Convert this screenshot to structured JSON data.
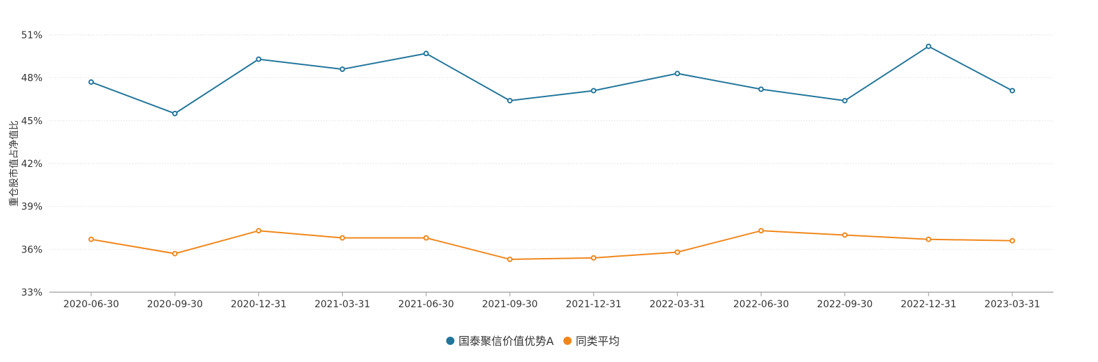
{
  "chart_data": {
    "type": "line",
    "ylabel": "重仓股市值占净值比",
    "ylim": [
      33,
      51
    ],
    "yticks": [
      33,
      36,
      39,
      42,
      45,
      48,
      51
    ],
    "ytick_labels": [
      "33%",
      "36%",
      "39%",
      "42%",
      "45%",
      "48%",
      "51%"
    ],
    "categories": [
      "2020-06-30",
      "2020-09-30",
      "2020-12-31",
      "2021-03-31",
      "2021-06-30",
      "2021-09-30",
      "2021-12-31",
      "2022-03-31",
      "2022-06-30",
      "2022-09-30",
      "2022-12-31",
      "2023-03-31"
    ],
    "grid": true,
    "legend_position": "bottom-center",
    "series": [
      {
        "name": "国泰聚信价值优势A",
        "color": "#21759b",
        "values": [
          47.7,
          45.5,
          49.3,
          48.6,
          49.7,
          46.4,
          47.1,
          48.3,
          47.2,
          46.4,
          50.2,
          47.1
        ]
      },
      {
        "name": "同类平均",
        "color": "#f0861a",
        "values": [
          36.7,
          35.7,
          37.3,
          36.8,
          36.8,
          35.3,
          35.4,
          35.8,
          37.3,
          37.0,
          36.7,
          36.6
        ]
      }
    ]
  }
}
